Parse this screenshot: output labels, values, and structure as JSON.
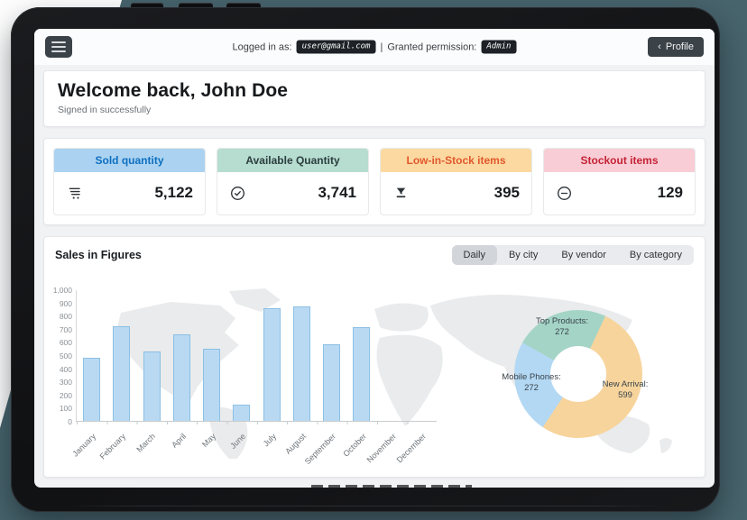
{
  "topbar": {
    "menu_icon": "hamburger-icon",
    "logged_in_label": "Logged in as:",
    "email": "user@gmail.com",
    "divider": "|",
    "permission_label": "Granted permission:",
    "permission": "Admin",
    "profile_arrow": "‹",
    "profile_label": "Profile"
  },
  "welcome": {
    "title": "Welcome back, John Doe",
    "subtitle": "Signed in successfully"
  },
  "stats": [
    {
      "label": "Sold quantity",
      "value": "5,122",
      "icon": "shopping-cart-icon",
      "header_bg": "#abd3f1",
      "header_text": "#0e6fc0"
    },
    {
      "label": "Available Quantity",
      "value": "3,741",
      "icon": "check-circle-icon",
      "header_bg": "#b6ddd0",
      "header_text": "#2c3e3d"
    },
    {
      "label": "Low-in-Stock items",
      "value": "395",
      "icon": "funnel-icon",
      "header_bg": "#fcd9a1",
      "header_text": "#e0582c"
    },
    {
      "label": "Stockout items",
      "value": "129",
      "icon": "minus-circle-icon",
      "header_bg": "#f8cdd5",
      "header_text": "#c52336"
    }
  ],
  "sales": {
    "title": "Sales in Figures",
    "tabs": [
      {
        "label": "Daily",
        "selected": true
      },
      {
        "label": "By city",
        "selected": false
      },
      {
        "label": "By vendor",
        "selected": false
      },
      {
        "label": "By category",
        "selected": false
      }
    ]
  },
  "chart_data": [
    {
      "type": "bar",
      "title": "Sales in Figures — monthly bars",
      "categories": [
        "January",
        "February",
        "March",
        "April",
        "May",
        "June",
        "July",
        "August",
        "September",
        "October",
        "November",
        "December"
      ],
      "values": [
        480,
        725,
        530,
        660,
        555,
        125,
        865,
        875,
        585,
        720,
        0,
        0
      ],
      "xlabel": "",
      "ylabel": "",
      "ylim": [
        0,
        1000
      ],
      "ytick_step": 100,
      "grid": false,
      "bar_color": "#b9d9f3",
      "bar_border": "#8cc0e4",
      "background": "world-map-watermark"
    },
    {
      "type": "donut",
      "title": "Sales in Figures — category share",
      "start_angle_deg": 25,
      "legend_position": "on-chart-labels",
      "segments": [
        {
          "name": "New Arrival",
          "label": "New Arrival:",
          "value": 599,
          "color": "#f7d49c"
        },
        {
          "name": "Mobile Phones",
          "label": "Mobile Phones:",
          "value": 272,
          "color": "#b3d8f3"
        },
        {
          "name": "Top Products",
          "label": "Top Products:",
          "value": 272,
          "color": "#a4d4c6"
        }
      ]
    }
  ]
}
